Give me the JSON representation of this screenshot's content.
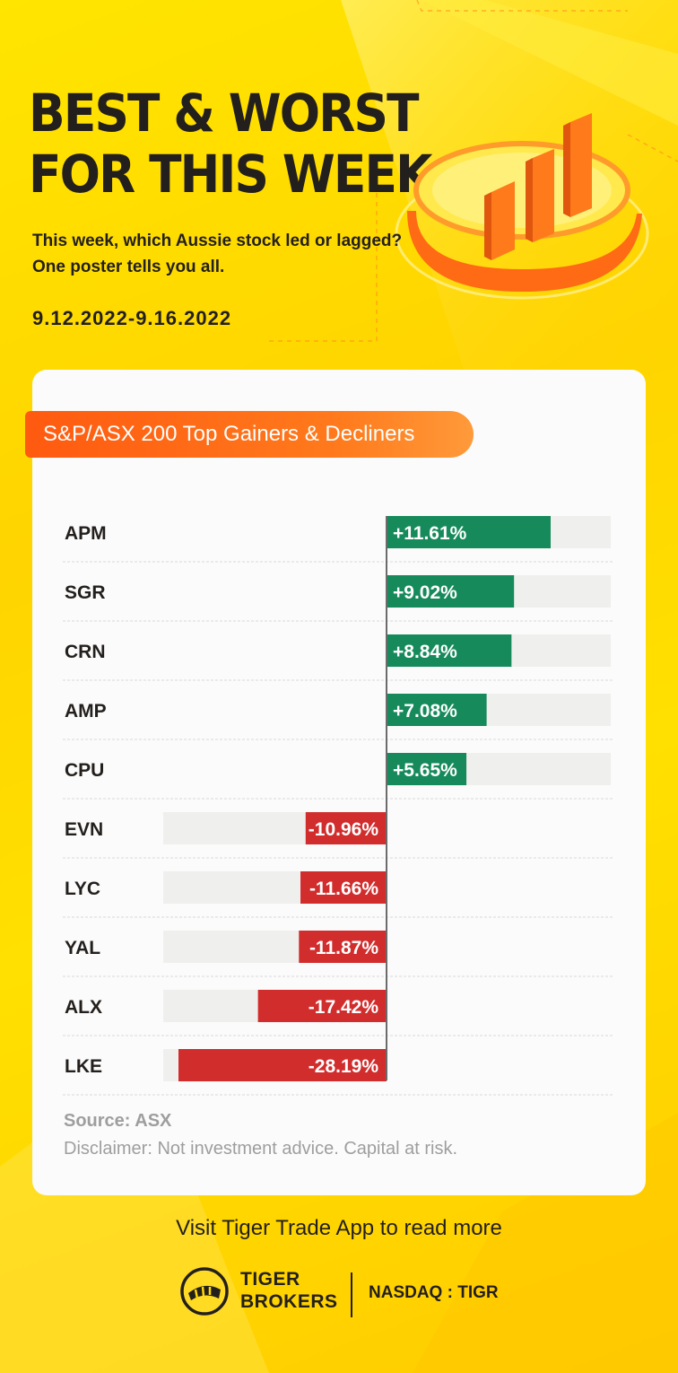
{
  "poster": {
    "title_line1": "BEST & WORST",
    "title_line2": "FOR THIS WEEK",
    "subtitle": "This week, which Aussie stock led or lagged? One poster tells you all.",
    "date_range": "9.12.2022-9.16.2022",
    "banner": "S&P/ASX 200 Top Gainers & Decliners",
    "source": "Source: ASX",
    "disclaimer": "Disclaimer: Not investment advice. Capital at risk.",
    "cta": "Visit Tiger Trade App to read more",
    "brand_line1": "TIGER",
    "brand_line2": "BROKERS",
    "exchange": "NASDAQ : TIGR"
  },
  "colors": {
    "gain": "#168a5b",
    "loss": "#d12d2d",
    "track": "#efefed",
    "accent": "#ff6a14",
    "background": "#ffd900"
  },
  "chart_data": {
    "type": "bar",
    "orientation": "horizontal-diverging",
    "title": "S&P/ASX 200 Top Gainers & Decliners",
    "unit": "%",
    "categories": [
      "APM",
      "SGR",
      "CRN",
      "AMP",
      "CPU",
      "EVN",
      "LYC",
      "YAL",
      "ALX",
      "LKE"
    ],
    "values": [
      11.61,
      9.02,
      8.84,
      7.08,
      5.65,
      -10.96,
      -11.66,
      -11.87,
      -17.42,
      -28.19
    ],
    "labels": [
      "+11.61%",
      "+9.02%",
      "+8.84%",
      "+7.08%",
      "+5.65%",
      "-10.96%",
      "-11.66%",
      "-11.87%",
      "-17.42%",
      "-28.19%"
    ]
  }
}
